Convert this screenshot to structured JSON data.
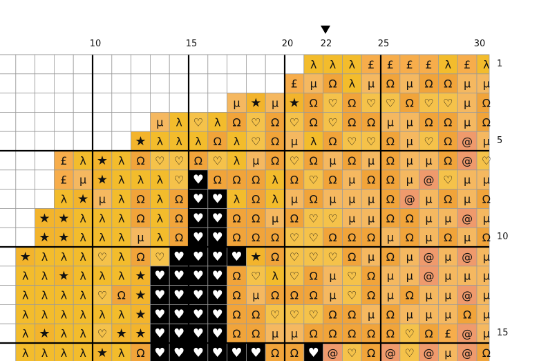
{
  "chart_data": {
    "type": "table",
    "column_labels": [
      {
        "col": 10,
        "text": "10"
      },
      {
        "col": 15,
        "text": "15"
      },
      {
        "col": 20,
        "text": "20"
      },
      {
        "col": 22,
        "text": "22"
      },
      {
        "col": 25,
        "text": "25"
      },
      {
        "col": 30,
        "text": "30"
      }
    ],
    "row_labels": [
      {
        "row": 1,
        "text": "1"
      },
      {
        "row": 5,
        "text": "5"
      },
      {
        "row": 10,
        "text": "10"
      },
      {
        "row": 15,
        "text": "15"
      }
    ],
    "marker_column": 22,
    "first_visible_column": 6,
    "colors": {
      "λ": "#f3bc2c",
      "£": "#f7ad4b",
      "μ": "#f5b860",
      "Ω": "#f1a43a",
      "♡": "#f5c24a",
      "@": "#ef9a6c",
      "★": "#f3b42c",
      "♥": "#000000",
      ".": "#ffffff"
    },
    "rows": [
      "................λλλ££££λ£λ£λλ...",
      "...............£μΩλμΩμΩΩμμ££μμμ",
      "............μ★μ★Ω♡Ω♡♡Ω♡♡μΩμμ£μ£",
      "........μλ♡λΩ♡Ω♡Ω♡ΩΩμμΩΩμΩ@μμμ",
      ".......★λλλΩλ♡ΩμλΩ♡♡Ωμ♡Ω@μμμ@",
      "...£λ★λΩ♡♡Ω♡λμΩ♡ΩμΩμΩμμΩ@♡♡",
      "...£μ★λλλ♡♥ΩΩΩλΩ♡ΩμΩΩμ@♡μμ",
      "...λ★μλΩλΩ♥♥λΩλμΩμμμΩ@μΩμΩ@",
      "..★★λλλΩλΩ♥♥ΩΩμΩ♡♡μμΩΩμμ@μμ",
      "..★★λλλμλΩ♥♥ΩΩΩ♡♡ΩΩΩμΩμΩμΩμ",
      ".★λλλ♡λΩ♡♥♥♥♥★Ω♡♡♡ΩμΩμ@μ@μ@",
      ".λλ★λλλ★♥♥♥♥Ω♡λ♡Ωμ♡Ωμμ@μμμμ",
      ".λλλλ♡Ω★♥♥♥♥ΩμΩΩΩμ♡ΩμΩμμ@μ@",
      ".λλλλλλ★♥♥♥♥ΩΩ♡♡♡ΩΩμΩμμμΩμ@",
      ".λ★λλ♡★★♥♥♥♥ΩΩμμΩΩΩΩΩ♡Ω£@μμ",
      ".λλλλ★λΩ♥♥♥♥♥♥ΩΩ♥@♡Ω@♡@μ@Ω@"
    ]
  }
}
